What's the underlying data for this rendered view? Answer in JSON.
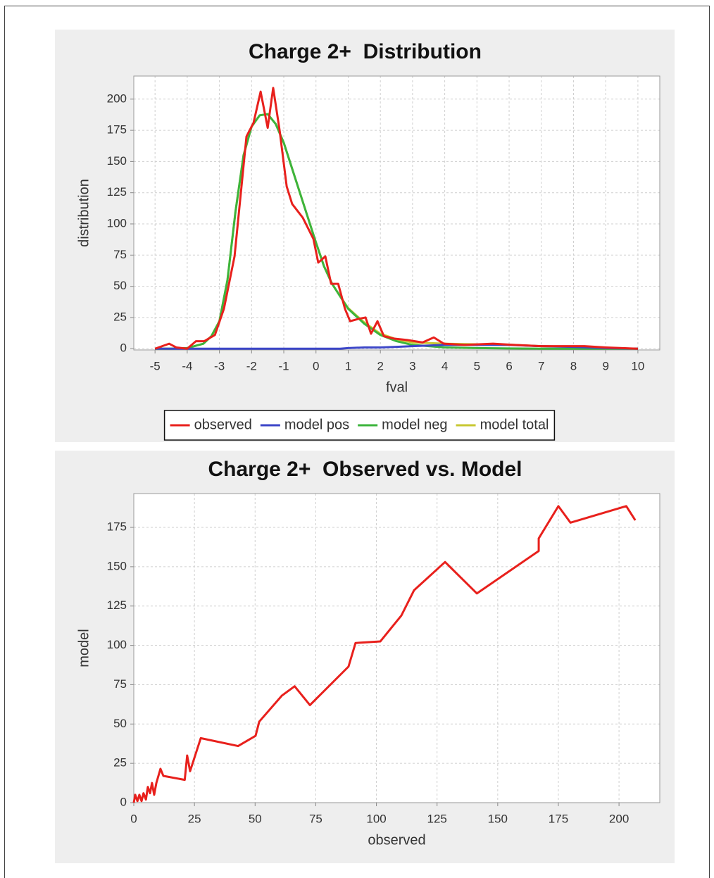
{
  "chart_data": [
    {
      "type": "line",
      "title": "Charge 2+  Distribution",
      "x_label": "fval",
      "y_label": "distribution",
      "xlim": [
        -5.66,
        10.68
      ],
      "xticks": [
        -5,
        -4,
        -3,
        -2,
        -1,
        0,
        1,
        2,
        3,
        4,
        5,
        6,
        7,
        8,
        9,
        10
      ],
      "ylim": [
        -1,
        218.5
      ],
      "yticks": [
        0,
        25,
        50,
        75,
        100,
        125,
        150,
        175,
        200
      ],
      "grid": true,
      "legend": "bottom",
      "series": [
        {
          "name": "model total",
          "color": "#c8c832",
          "x": [
            -5,
            -4.5,
            -4,
            -3.5,
            -3.25,
            -3,
            -2.75,
            -2.5,
            -2.25,
            -2,
            -1.75,
            -1.5,
            -1.25,
            -1,
            -0.75,
            -0.5,
            -0.25,
            0,
            0.25,
            0.5,
            0.75,
            1,
            1.5,
            2,
            2.5,
            3,
            3.5,
            4,
            5,
            6,
            7,
            8,
            9,
            10
          ],
          "values": [
            0,
            0,
            0.5,
            4,
            10,
            22,
            55,
            110,
            155,
            178,
            187,
            188,
            180,
            165,
            145,
            125,
            105,
            85,
            66,
            52,
            42,
            32.5,
            21,
            12,
            7.5,
            5,
            4.5,
            4,
            3.5,
            3.2,
            2,
            1.5,
            0.5,
            0
          ]
        },
        {
          "name": "model neg",
          "color": "#3cb43c",
          "x": [
            -5,
            -4.5,
            -4,
            -3.5,
            -3.25,
            -3,
            -2.75,
            -2.5,
            -2.25,
            -2,
            -1.75,
            -1.5,
            -1.25,
            -1,
            -0.75,
            -0.5,
            -0.25,
            0,
            0.25,
            0.5,
            0.75,
            1,
            1.5,
            2,
            2.5,
            3,
            3.5,
            4,
            5,
            6,
            7,
            8,
            9,
            10
          ],
          "values": [
            0,
            0,
            0.5,
            4,
            10,
            22,
            55,
            110,
            155,
            178,
            187,
            188,
            180,
            165,
            145,
            125,
            105,
            85,
            66,
            52,
            42,
            32,
            20,
            11,
            6,
            3,
            2,
            1,
            0.5,
            0.2,
            0,
            0,
            0,
            0
          ]
        },
        {
          "name": "model pos",
          "color": "#3c46c8",
          "x": [
            -5,
            -4.5,
            -4,
            -3.5,
            -3.25,
            -3,
            -2.75,
            -2.5,
            -2.25,
            -2,
            -1.75,
            -1.5,
            -1.25,
            -1,
            -0.75,
            -0.5,
            -0.25,
            0,
            0.25,
            0.5,
            0.75,
            1,
            1.5,
            2,
            2.5,
            3,
            3.5,
            4,
            5,
            6,
            7,
            8,
            9,
            10
          ],
          "values": [
            0,
            0,
            0,
            0,
            0,
            0,
            0,
            0,
            0,
            0,
            0,
            0,
            0,
            0,
            0,
            0,
            0,
            0,
            0,
            0,
            0,
            0.5,
            1,
            1,
            1.5,
            2,
            2.5,
            3,
            3,
            3,
            2,
            1.5,
            0.5,
            0
          ]
        },
        {
          "name": "observed",
          "color": "#e8201c",
          "x": [
            -5,
            -4.56,
            -4.34,
            -4,
            -3.73,
            -3.47,
            -3.14,
            -2.86,
            -2.53,
            -2.16,
            -1.94,
            -1.72,
            -1.5,
            -1.33,
            -1.13,
            -0.91,
            -0.74,
            -0.41,
            -0.08,
            0.07,
            0.29,
            0.47,
            0.69,
            0.9,
            1.06,
            1.34,
            1.54,
            1.71,
            1.91,
            2.11,
            2.44,
            2.83,
            3.31,
            3.66,
            3.97,
            4.62,
            5.5,
            6.15,
            7.03,
            7.68,
            8.34,
            9,
            10
          ],
          "values": [
            0,
            4,
            1,
            0,
            6,
            6,
            11,
            32,
            74,
            170,
            181,
            206,
            177,
            209,
            175,
            130,
            116,
            105,
            88,
            69,
            74,
            52,
            52,
            32,
            22,
            24,
            25,
            12,
            22,
            10,
            8,
            7,
            5,
            9,
            4,
            3,
            4,
            3,
            2,
            2,
            2,
            1,
            0
          ]
        }
      ]
    },
    {
      "type": "line",
      "title": "Charge 2+  Observed vs. Model",
      "x_label": "observed",
      "y_label": "model",
      "xlim": [
        0,
        216.8
      ],
      "xticks": [
        0,
        25,
        50,
        75,
        100,
        125,
        150,
        175,
        200
      ],
      "ylim": [
        0,
        196.5
      ],
      "yticks": [
        0,
        25,
        50,
        75,
        100,
        125,
        150,
        175
      ],
      "grid": true,
      "color": "#e8201c",
      "x": [
        0,
        0.6,
        1.5,
        2.3,
        3.2,
        4,
        5,
        5.8,
        6.7,
        7.5,
        8.4,
        9.3,
        11,
        12.2,
        21,
        22,
        23.2,
        27.6,
        43,
        50.2,
        51.7,
        61,
        66.3,
        72.6,
        88.5,
        91.4,
        101.6,
        110.3,
        115.5,
        128.3,
        141.4,
        166.9,
        166.9,
        175,
        180,
        203,
        206.7
      ],
      "values": [
        0,
        5,
        1,
        5,
        1,
        6,
        2,
        10,
        6,
        12.5,
        5,
        12.5,
        21.5,
        17,
        14.5,
        30,
        20,
        41,
        36,
        42.5,
        51.5,
        68,
        74,
        62,
        86.5,
        101.5,
        102.5,
        119,
        135,
        153,
        133,
        160,
        168,
        188.5,
        178,
        188.5,
        179.5
      ]
    }
  ]
}
